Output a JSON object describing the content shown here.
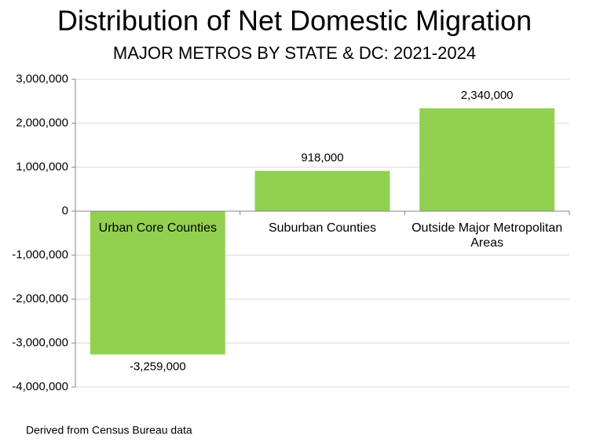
{
  "chart_data": {
    "type": "bar",
    "title": "Distribution of Net Domestic Migration",
    "subtitle": "MAJOR METROS BY STATE & DC: 2021-2024",
    "categories": [
      "Urban Core Counties",
      "Suburban Counties",
      "Outside Major Metropolitan Areas"
    ],
    "values": [
      -3259000,
      918000,
      2340000
    ],
    "value_labels": [
      "-3,259,000",
      "918,000",
      "2,340,000"
    ],
    "color": "#92d050",
    "ylim": [
      -4000000,
      3000000
    ],
    "yticks": [
      {
        "value": -4000000,
        "label": "-4,000,000"
      },
      {
        "value": -3000000,
        "label": "-3,000,000"
      },
      {
        "value": -2000000,
        "label": "-2,000,000"
      },
      {
        "value": -1000000,
        "label": "-1,000,000"
      },
      0,
      {
        "value": 1000000,
        "label": "1,000,000"
      },
      {
        "value": 2000000,
        "label": "2,000,000"
      },
      {
        "value": 3000000,
        "label": "3,000,000"
      }
    ],
    "grid": true,
    "note": "Derived from Census Bureau data"
  }
}
